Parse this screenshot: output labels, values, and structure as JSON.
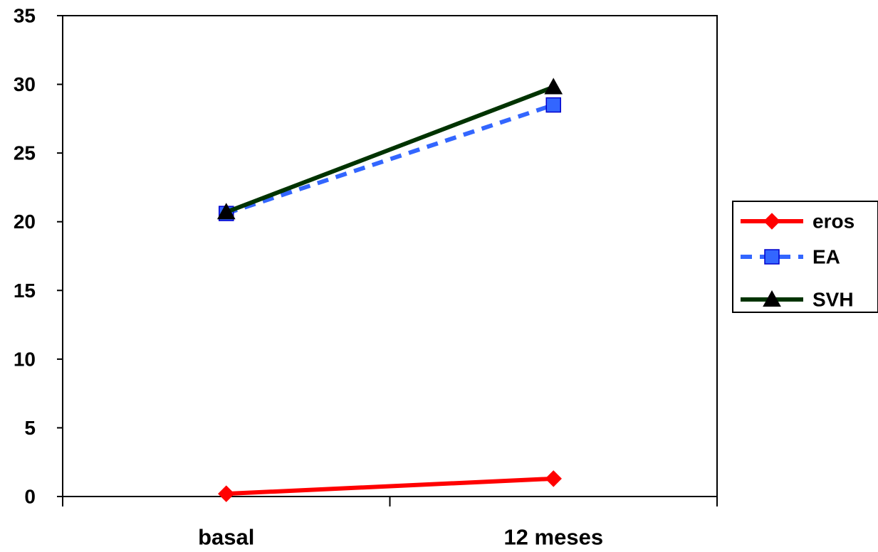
{
  "chart_data": {
    "type": "line",
    "categories": [
      "basal",
      "12 meses"
    ],
    "series": [
      {
        "name": "eros",
        "values": [
          0.2,
          1.3
        ],
        "color": "#ff0000",
        "line_style": "solid",
        "marker": "diamond",
        "marker_color": "#ff0000"
      },
      {
        "name": "EA",
        "values": [
          20.6,
          28.5
        ],
        "color": "#3366ff",
        "line_style": "dashed",
        "marker": "square",
        "marker_color": "#3366ff"
      },
      {
        "name": "SVH",
        "values": [
          20.7,
          29.8
        ],
        "color": "#003300",
        "line_style": "solid",
        "marker": "triangle",
        "marker_color": "#000000"
      }
    ],
    "y_ticks": [
      "0",
      "5",
      "10",
      "15",
      "20",
      "25",
      "30",
      "35"
    ],
    "ylim": [
      0,
      35
    ],
    "title": "",
    "xlabel": "",
    "ylabel": "",
    "grid": false,
    "legend_position": "right"
  }
}
